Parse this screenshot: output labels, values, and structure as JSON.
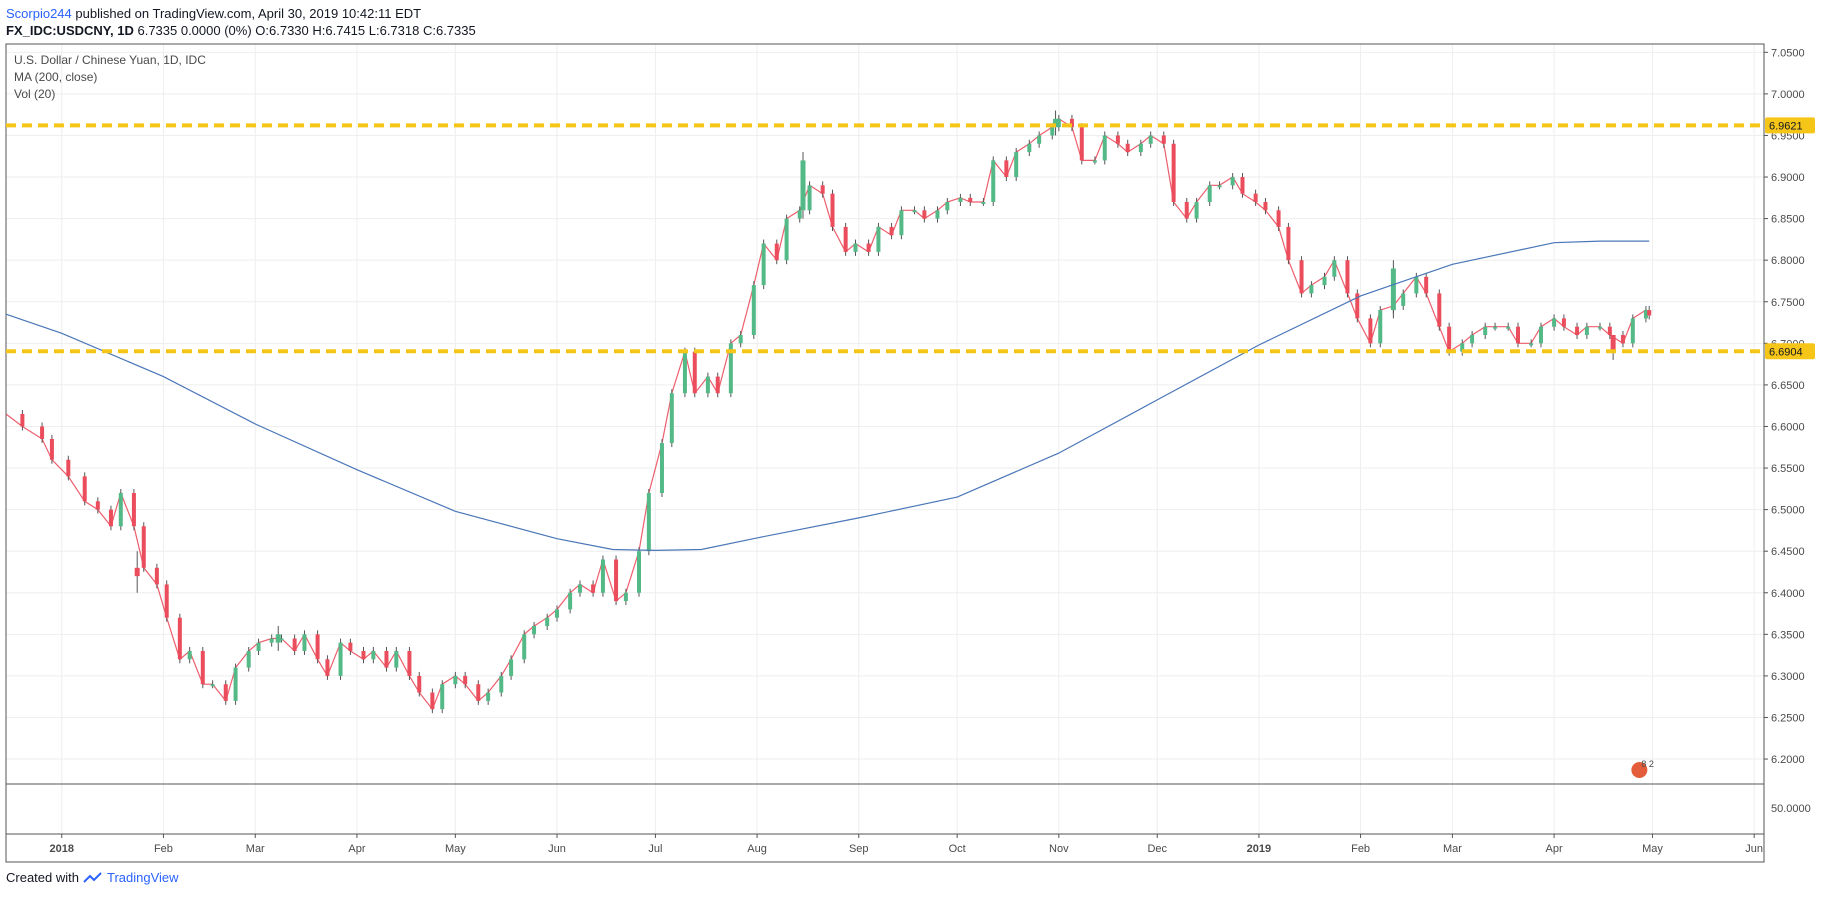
{
  "header": {
    "author": "Scorpio244",
    "published_text": " published on TradingView.com, April 30, 2019 10:42:11 EDT",
    "symbol": "FX_IDC:USDCNY, 1D",
    "ohlc": " 6.7335 0.0000 (0%) O:6.7330 H:6.7415 L:6.7318 C:6.7335"
  },
  "legend": {
    "title": "U.S. Dollar / Chinese Yuan, 1D, IDC",
    "ma": "MA (200, close)",
    "vol": "Vol (20)"
  },
  "footer": {
    "created_with": "Created with",
    "brand": "TradingView"
  },
  "colors": {
    "up": "#53b987",
    "down": "#eb4d5c",
    "ma": "#4a76b8",
    "level": "#f5c518",
    "grid": "#eeeeee",
    "axis_text": "#4a4a4a",
    "border": "#555555"
  },
  "volume_pane": {
    "label": "50.0000"
  },
  "overlay_badge": "8 2",
  "chart_data": {
    "type": "candlestick",
    "ylim": [
      6.17,
      7.06
    ],
    "y_ticks": [
      "7.0500",
      "7.0000",
      "6.9500",
      "6.9000",
      "6.8500",
      "6.8000",
      "6.7500",
      "6.7000",
      "6.6500",
      "6.6000",
      "6.5500",
      "6.5000",
      "6.4500",
      "6.4000",
      "6.3500",
      "6.3000",
      "6.2500",
      "6.2000"
    ],
    "x_ticks": [
      {
        "label": "2018",
        "date": "2018-01-01",
        "bold": true
      },
      {
        "label": "Feb",
        "date": "2018-02-01"
      },
      {
        "label": "Mar",
        "date": "2018-03-01"
      },
      {
        "label": "Apr",
        "date": "2018-04-01"
      },
      {
        "label": "May",
        "date": "2018-05-01"
      },
      {
        "label": "Jun",
        "date": "2018-06-01"
      },
      {
        "label": "Jul",
        "date": "2018-07-01"
      },
      {
        "label": "Aug",
        "date": "2018-08-01"
      },
      {
        "label": "Sep",
        "date": "2018-09-01"
      },
      {
        "label": "Oct",
        "date": "2018-10-01"
      },
      {
        "label": "Nov",
        "date": "2018-11-01"
      },
      {
        "label": "Dec",
        "date": "2018-12-01"
      },
      {
        "label": "2019",
        "date": "2019-01-01",
        "bold": true
      },
      {
        "label": "Feb",
        "date": "2019-02-01"
      },
      {
        "label": "Mar",
        "date": "2019-03-01"
      },
      {
        "label": "Apr",
        "date": "2019-04-01"
      },
      {
        "label": "May",
        "date": "2019-05-01"
      },
      {
        "label": "Jun",
        "date": "2019-06-01"
      }
    ],
    "x_range": [
      "2017-12-15",
      "2019-06-04"
    ],
    "levels": [
      {
        "value": 6.9621,
        "label": "6.9621"
      },
      {
        "value": 6.6904,
        "label": "6.6904"
      }
    ],
    "close_path": [
      [
        "2017-12-15",
        6.615
      ],
      [
        "2017-12-20",
        6.6
      ],
      [
        "2017-12-26",
        6.585
      ],
      [
        "2017-12-29",
        6.56
      ],
      [
        "2018-01-03",
        6.54
      ],
      [
        "2018-01-08",
        6.51
      ],
      [
        "2018-01-12",
        6.5
      ],
      [
        "2018-01-16",
        6.48
      ],
      [
        "2018-01-19",
        6.52
      ],
      [
        "2018-01-23",
        6.48
      ],
      [
        "2018-01-26",
        6.43
      ],
      [
        "2018-01-30",
        6.41
      ],
      [
        "2018-02-02",
        6.37
      ],
      [
        "2018-02-06",
        6.32
      ],
      [
        "2018-02-09",
        6.33
      ],
      [
        "2018-02-13",
        6.29
      ],
      [
        "2018-02-16",
        6.29
      ],
      [
        "2018-02-20",
        6.27
      ],
      [
        "2018-02-23",
        6.31
      ],
      [
        "2018-02-27",
        6.33
      ],
      [
        "2018-03-02",
        6.34
      ],
      [
        "2018-03-06",
        6.345
      ],
      [
        "2018-03-09",
        6.345
      ],
      [
        "2018-03-13",
        6.33
      ],
      [
        "2018-03-16",
        6.35
      ],
      [
        "2018-03-20",
        6.32
      ],
      [
        "2018-03-23",
        6.3
      ],
      [
        "2018-03-27",
        6.34
      ],
      [
        "2018-03-30",
        6.33
      ],
      [
        "2018-04-03",
        6.32
      ],
      [
        "2018-04-06",
        6.33
      ],
      [
        "2018-04-10",
        6.31
      ],
      [
        "2018-04-13",
        6.33
      ],
      [
        "2018-04-17",
        6.3
      ],
      [
        "2018-04-20",
        6.28
      ],
      [
        "2018-04-24",
        6.26
      ],
      [
        "2018-04-27",
        6.29
      ],
      [
        "2018-05-01",
        6.3
      ],
      [
        "2018-05-04",
        6.29
      ],
      [
        "2018-05-08",
        6.27
      ],
      [
        "2018-05-11",
        6.28
      ],
      [
        "2018-05-15",
        6.3
      ],
      [
        "2018-05-18",
        6.32
      ],
      [
        "2018-05-22",
        6.35
      ],
      [
        "2018-05-25",
        6.36
      ],
      [
        "2018-05-29",
        6.37
      ],
      [
        "2018-06-01",
        6.38
      ],
      [
        "2018-06-05",
        6.4
      ],
      [
        "2018-06-08",
        6.41
      ],
      [
        "2018-06-12",
        6.4
      ],
      [
        "2018-06-15",
        6.44
      ],
      [
        "2018-06-19",
        6.39
      ],
      [
        "2018-06-22",
        6.4
      ],
      [
        "2018-06-26",
        6.45
      ],
      [
        "2018-06-29",
        6.52
      ],
      [
        "2018-07-03",
        6.58
      ],
      [
        "2018-07-06",
        6.64
      ],
      [
        "2018-07-10",
        6.69
      ],
      [
        "2018-07-13",
        6.64
      ],
      [
        "2018-07-17",
        6.66
      ],
      [
        "2018-07-20",
        6.64
      ],
      [
        "2018-07-24",
        6.7
      ],
      [
        "2018-07-27",
        6.71
      ],
      [
        "2018-07-31",
        6.77
      ],
      [
        "2018-08-03",
        6.82
      ],
      [
        "2018-08-07",
        6.8
      ],
      [
        "2018-08-10",
        6.85
      ],
      [
        "2018-08-14",
        6.86
      ],
      [
        "2018-08-17",
        6.89
      ],
      [
        "2018-08-21",
        6.88
      ],
      [
        "2018-08-24",
        6.84
      ],
      [
        "2018-08-28",
        6.81
      ],
      [
        "2018-08-31",
        6.82
      ],
      [
        "2018-09-04",
        6.81
      ],
      [
        "2018-09-07",
        6.84
      ],
      [
        "2018-09-11",
        6.83
      ],
      [
        "2018-09-14",
        6.86
      ],
      [
        "2018-09-18",
        6.86
      ],
      [
        "2018-09-21",
        6.85
      ],
      [
        "2018-09-25",
        6.86
      ],
      [
        "2018-09-28",
        6.87
      ],
      [
        "2018-10-02",
        6.875
      ],
      [
        "2018-10-05",
        6.87
      ],
      [
        "2018-10-09",
        6.87
      ],
      [
        "2018-10-12",
        6.92
      ],
      [
        "2018-10-16",
        6.9
      ],
      [
        "2018-10-19",
        6.93
      ],
      [
        "2018-10-23",
        6.94
      ],
      [
        "2018-10-26",
        6.95
      ],
      [
        "2018-10-30",
        6.96
      ],
      [
        "2018-11-01",
        6.97
      ],
      [
        "2018-11-05",
        6.96
      ],
      [
        "2018-11-08",
        6.92
      ],
      [
        "2018-11-12",
        6.92
      ],
      [
        "2018-11-15",
        6.95
      ],
      [
        "2018-11-19",
        6.94
      ],
      [
        "2018-11-22",
        6.93
      ],
      [
        "2018-11-26",
        6.94
      ],
      [
        "2018-11-29",
        6.95
      ],
      [
        "2018-12-03",
        6.94
      ],
      [
        "2018-12-06",
        6.87
      ],
      [
        "2018-12-10",
        6.85
      ],
      [
        "2018-12-13",
        6.87
      ],
      [
        "2018-12-17",
        6.89
      ],
      [
        "2018-12-20",
        6.89
      ],
      [
        "2018-12-24",
        6.9
      ],
      [
        "2018-12-27",
        6.88
      ],
      [
        "2018-12-31",
        6.87
      ],
      [
        "2019-01-03",
        6.86
      ],
      [
        "2019-01-07",
        6.84
      ],
      [
        "2019-01-10",
        6.8
      ],
      [
        "2019-01-14",
        6.76
      ],
      [
        "2019-01-17",
        6.77
      ],
      [
        "2019-01-21",
        6.78
      ],
      [
        "2019-01-24",
        6.8
      ],
      [
        "2019-01-28",
        6.76
      ],
      [
        "2019-01-31",
        6.73
      ],
      [
        "2019-02-04",
        6.7
      ],
      [
        "2019-02-07",
        6.74
      ],
      [
        "2019-02-11",
        6.745
      ],
      [
        "2019-02-14",
        6.76
      ],
      [
        "2019-02-18",
        6.78
      ],
      [
        "2019-02-21",
        6.76
      ],
      [
        "2019-02-25",
        6.72
      ],
      [
        "2019-02-28",
        6.69
      ],
      [
        "2019-03-04",
        6.7
      ],
      [
        "2019-03-07",
        6.71
      ],
      [
        "2019-03-11",
        6.72
      ],
      [
        "2019-03-14",
        6.72
      ],
      [
        "2019-03-18",
        6.72
      ],
      [
        "2019-03-21",
        6.7
      ],
      [
        "2019-03-25",
        6.7
      ],
      [
        "2019-03-28",
        6.72
      ],
      [
        "2019-04-01",
        6.73
      ],
      [
        "2019-04-04",
        6.72
      ],
      [
        "2019-04-08",
        6.71
      ],
      [
        "2019-04-11",
        6.72
      ],
      [
        "2019-04-15",
        6.72
      ],
      [
        "2019-04-18",
        6.71
      ],
      [
        "2019-04-22",
        6.7
      ],
      [
        "2019-04-25",
        6.73
      ],
      [
        "2019-04-29",
        6.74
      ],
      [
        "2019-04-30",
        6.7335
      ]
    ],
    "ma200": [
      [
        "2017-12-15",
        6.735
      ],
      [
        "2018-01-01",
        6.712
      ],
      [
        "2018-02-01",
        6.66
      ],
      [
        "2018-03-01",
        6.603
      ],
      [
        "2018-04-01",
        6.548
      ],
      [
        "2018-05-01",
        6.498
      ],
      [
        "2018-06-01",
        6.465
      ],
      [
        "2018-06-18",
        6.452
      ],
      [
        "2018-07-01",
        6.451
      ],
      [
        "2018-07-15",
        6.452
      ],
      [
        "2018-08-01",
        6.466
      ],
      [
        "2018-09-01",
        6.49
      ],
      [
        "2018-10-01",
        6.515
      ],
      [
        "2018-11-01",
        6.568
      ],
      [
        "2018-12-01",
        6.632
      ],
      [
        "2019-01-01",
        6.698
      ],
      [
        "2019-02-01",
        6.757
      ],
      [
        "2019-03-01",
        6.795
      ],
      [
        "2019-04-01",
        6.821
      ],
      [
        "2019-04-15",
        6.823
      ],
      [
        "2019-04-30",
        6.823
      ]
    ],
    "candles": [
      [
        "2018-01-24",
        6.43,
        6.45,
        6.4,
        6.42
      ],
      [
        "2018-03-08",
        6.34,
        6.36,
        6.33,
        6.35
      ],
      [
        "2018-08-15",
        6.86,
        6.93,
        6.85,
        6.92
      ],
      [
        "2018-10-31",
        6.96,
        6.98,
        6.95,
        6.97
      ],
      [
        "2019-02-11",
        6.74,
        6.8,
        6.73,
        6.79
      ],
      [
        "2019-04-19",
        6.71,
        6.71,
        6.68,
        6.69
      ]
    ]
  }
}
